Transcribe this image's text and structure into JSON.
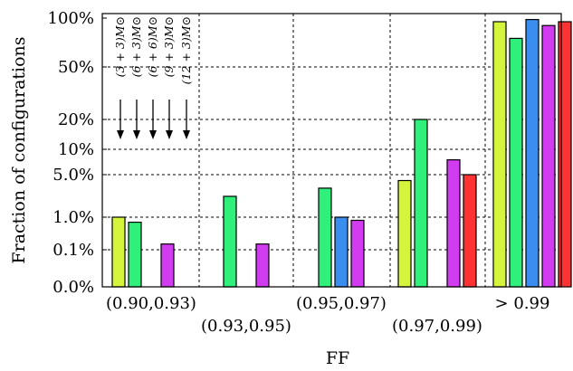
{
  "chart_data": {
    "type": "bar",
    "xlabel": "FF",
    "ylabel": "Fraction of configurations",
    "categories": [
      "(0.90,0.93)",
      "(0.93,0.95)",
      "(0.95,0.97)",
      "(0.97,0.99)",
      "> 0.99"
    ],
    "y_ticks": [
      "100%",
      "50%",
      "20%",
      "10%",
      "5.0%",
      "1.0%",
      "0.1%",
      "0.0%"
    ],
    "grid": "dashed",
    "legend_placement": "top-left, vertical labels with arrows",
    "series": [
      {
        "name": "(3 + 3)M⊙",
        "color": "#d4f53c",
        "values": [
          1.0,
          null,
          null,
          4.0,
          95
        ]
      },
      {
        "name": "(6 + 3)M⊙",
        "color": "#2ef07a",
        "values": [
          0.7,
          2.2,
          3.0,
          20,
          75
        ]
      },
      {
        "name": "(6 + 6)M⊙",
        "color": "#3a8ef0",
        "values": [
          null,
          null,
          1.0,
          null,
          98
        ]
      },
      {
        "name": "(9 + 3)M⊙",
        "color": "#d23cf0",
        "values": [
          0.15,
          0.15,
          0.8,
          7.5,
          90
        ]
      },
      {
        "name": "(12 + 3)M⊙",
        "color": "#ff3333",
        "values": [
          null,
          null,
          null,
          5.0,
          95
        ]
      }
    ]
  }
}
